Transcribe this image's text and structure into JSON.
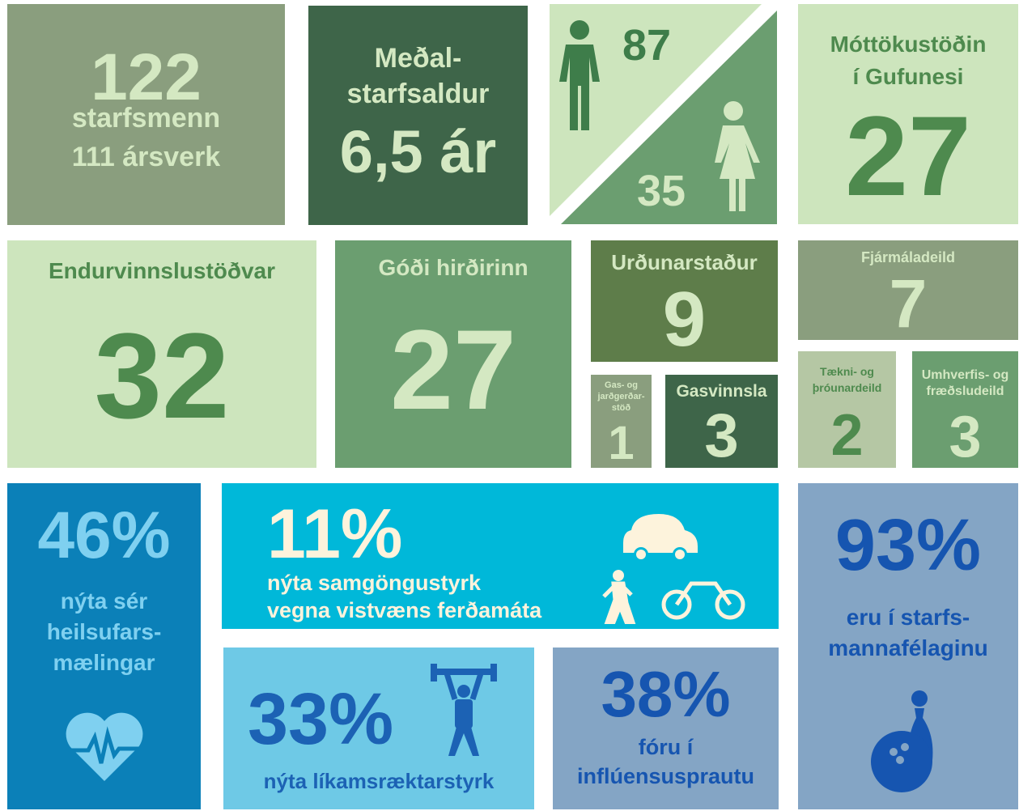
{
  "tiles": {
    "staff": {
      "number": "122",
      "line1": "starfsmenn",
      "line2": "111 ársverk"
    },
    "avg_tenure": {
      "line1": "Meðal-",
      "line2": "starfsaldur",
      "number": "6,5 ár"
    },
    "gender": {
      "men": "87",
      "women": "35"
    },
    "gufunes": {
      "line1": "Móttökustöðin",
      "line2": "í Gufunesi",
      "number": "27"
    },
    "recycling": {
      "label": "Endurvinnslustöðvar",
      "number": "32"
    },
    "godi": {
      "label": "Góði hirðirinn",
      "number": "27"
    },
    "landfill": {
      "label": "Urðunarstaður",
      "number": "9"
    },
    "gas_compost": {
      "line1": "Gas- og",
      "line2": "jarðgerðar-",
      "line3": "stöð",
      "number": "1"
    },
    "gas": {
      "label": "Gasvinnsla",
      "number": "3"
    },
    "finance": {
      "label": "Fjármáladeild",
      "number": "7"
    },
    "tech": {
      "line1": "Tækni- og",
      "line2": "þróunardeild",
      "number": "2"
    },
    "environment": {
      "line1": "Umhverfis- og",
      "line2": "fræðsludeild",
      "number": "3"
    },
    "health": {
      "number": "46%",
      "line1": "nýta sér",
      "line2": "heilsufars-",
      "line3": "mælingar"
    },
    "transport": {
      "number": "11%",
      "line1": "nýta samgöngustyrk",
      "line2": "vegna vistvæns ferðamáta"
    },
    "fitness": {
      "number": "33%",
      "label": "nýta líkamsræktarstyrk"
    },
    "flu": {
      "number": "38%",
      "line1": "fóru í",
      "line2": "inflúensusprautu"
    },
    "union": {
      "number": "93%",
      "line1": "eru í starfs-",
      "line2": "mannafélaginu"
    }
  }
}
